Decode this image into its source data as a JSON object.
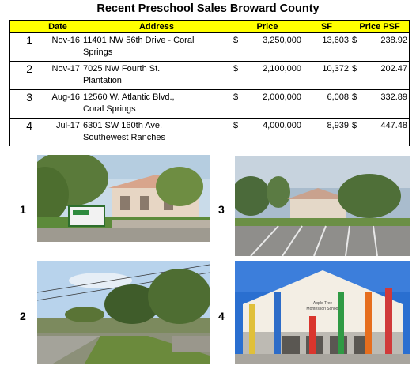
{
  "title": "Recent Preschool Sales Broward County",
  "table": {
    "headers": [
      "Date",
      "Address",
      "Price",
      "SF",
      "Price PSF"
    ],
    "rows": [
      {
        "index": "1",
        "date": "Nov-16",
        "address_line1": "11401 NW 56th Drive - Coral",
        "address_line2": "Springs",
        "price_currency": "$",
        "price": "3,250,000",
        "sf": "13,603",
        "psf_currency": "$",
        "psf": "238.92"
      },
      {
        "index": "2",
        "date": "Nov-17",
        "address_line1": "7025 NW Fourth St.",
        "address_line2": "Plantation",
        "price_currency": "$",
        "price": "2,100,000",
        "sf": "10,372",
        "psf_currency": "$",
        "psf": "202.47"
      },
      {
        "index": "3",
        "date": "Aug-16",
        "address_line1": "12560 W. Atlantic Blvd.,",
        "address_line2": "Coral Springs",
        "price_currency": "$",
        "price": "2,000,000",
        "sf": "6,008",
        "psf_currency": "$",
        "psf": "332.89"
      },
      {
        "index": "4",
        "date": "Jul-17",
        "address_line1": "6301 SW 160th Ave.",
        "address_line2": "Southewest Ranches",
        "price_currency": "$",
        "price": "4,000,000",
        "sf": "8,939",
        "psf_currency": "$",
        "psf": "447.48"
      }
    ]
  },
  "photos": [
    {
      "label": "1",
      "description_icon": "preschool-building-photo-1"
    },
    {
      "label": "2",
      "description_icon": "street-view-photo-2"
    },
    {
      "label": "3",
      "description_icon": "preschool-parking-photo-3"
    },
    {
      "label": "4",
      "description_icon": "montessori-school-photo-4"
    }
  ],
  "colors": {
    "header_bg": "#ffff00"
  }
}
